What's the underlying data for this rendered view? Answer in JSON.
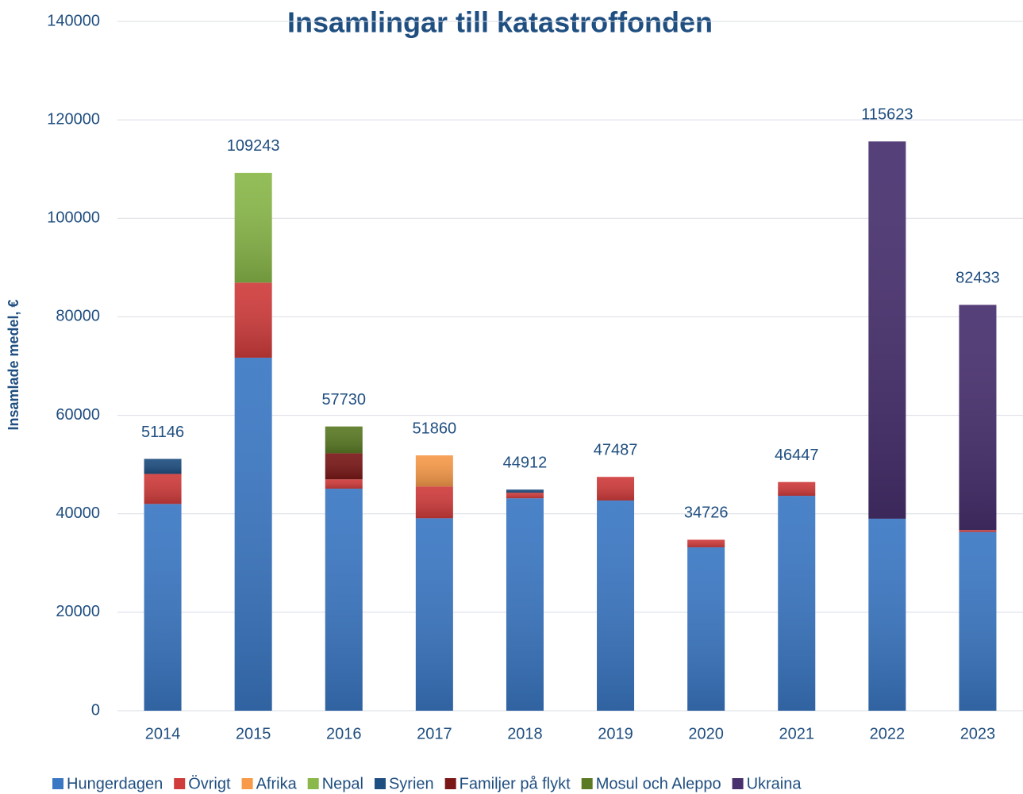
{
  "chart_data": {
    "type": "stacked-bar",
    "title": "Insamlingar till katastroffonden",
    "ylabel": "Insamlade medel, €",
    "categories": [
      "2014",
      "2015",
      "2016",
      "2017",
      "2018",
      "2019",
      "2020",
      "2021",
      "2022",
      "2023"
    ],
    "series": [
      {
        "name": "Hungerdagen",
        "color": "#3b78c4",
        "values": [
          42000,
          71700,
          45100,
          39100,
          43150,
          42700,
          33200,
          43650,
          39000,
          36300
        ]
      },
      {
        "name": "Övrigt",
        "color": "#d03c3c",
        "values": [
          6100,
          15250,
          1900,
          6460,
          1130,
          4787,
          1526,
          2797,
          null,
          400
        ]
      },
      {
        "name": "Afrika",
        "color": "#f79a4a",
        "values": [
          null,
          null,
          null,
          6300,
          null,
          null,
          null,
          null,
          null,
          null
        ]
      },
      {
        "name": "Nepal",
        "color": "#8ab84a",
        "values": [
          null,
          22293,
          null,
          null,
          null,
          null,
          null,
          null,
          null,
          null
        ]
      },
      {
        "name": "Syrien",
        "color": "#1f4e80",
        "values": [
          3046,
          null,
          null,
          null,
          632,
          null,
          null,
          null,
          null,
          null
        ]
      },
      {
        "name": "Familjer på flykt",
        "color": "#7a1818",
        "values": [
          null,
          null,
          5300,
          null,
          null,
          null,
          null,
          null,
          null,
          null
        ]
      },
      {
        "name": "Mosul och Aleppo",
        "color": "#5a7a24",
        "values": [
          null,
          null,
          5430,
          null,
          null,
          null,
          null,
          null,
          null,
          null
        ]
      },
      {
        "name": "Ukraina",
        "color": "#48306e",
        "values": [
          null,
          null,
          null,
          null,
          null,
          null,
          null,
          null,
          76623,
          45733
        ]
      }
    ],
    "totals": [
      51146,
      109243,
      57730,
      51860,
      44912,
      47487,
      34726,
      46447,
      115623,
      82433
    ],
    "ylim": [
      0,
      140000
    ],
    "yticks": [
      0,
      20000,
      40000,
      60000,
      80000,
      100000,
      120000,
      140000
    ],
    "grid": true
  }
}
